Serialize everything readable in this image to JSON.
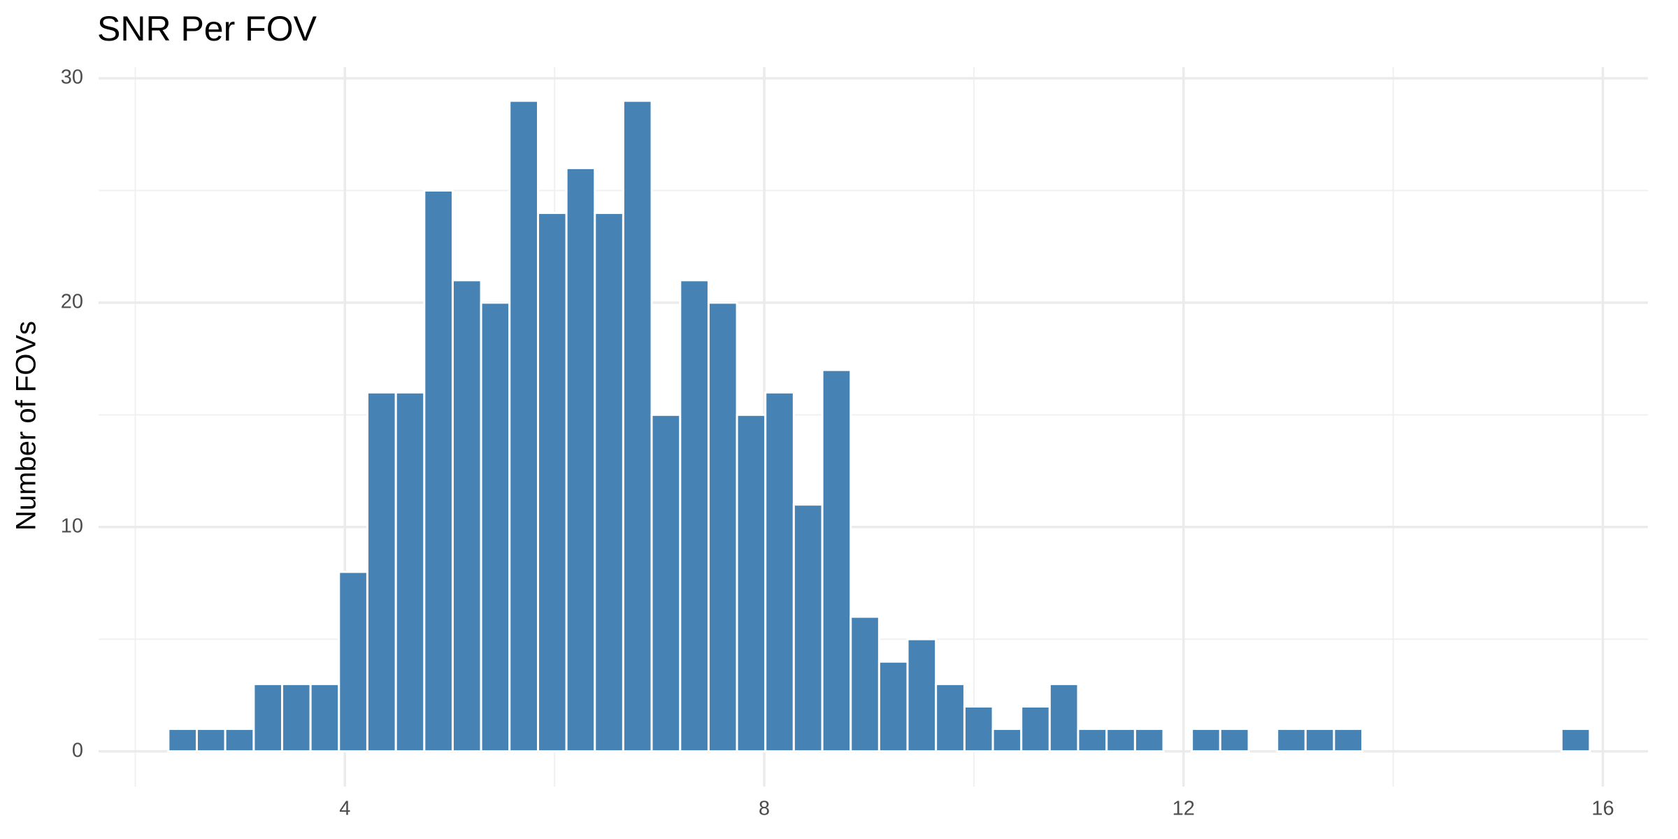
{
  "chart_data": {
    "type": "histogram",
    "title": "SNR Per FOV",
    "y_label": "Number of FOVs",
    "bins": [
      2.316,
      2.587,
      2.858,
      3.13,
      3.401,
      3.672,
      3.943,
      4.214,
      4.486,
      4.757,
      5.028,
      5.299,
      5.57,
      5.842,
      6.113,
      6.384,
      6.655,
      6.926,
      7.198,
      7.469,
      7.74,
      8.011,
      8.282,
      8.554,
      8.825,
      9.096,
      9.367,
      9.638,
      9.91,
      10.181,
      10.452,
      10.723,
      10.994,
      11.266,
      11.537,
      11.808,
      12.079,
      12.35,
      12.622,
      12.893,
      13.164,
      13.435,
      13.706,
      13.978,
      14.249,
      14.52,
      14.791,
      15.062,
      15.334,
      15.605,
      15.876
    ],
    "counts": [
      1,
      1,
      1,
      3,
      3,
      3,
      8,
      16,
      16,
      25,
      21,
      20,
      29,
      24,
      26,
      24,
      29,
      15,
      21,
      20,
      15,
      16,
      11,
      17,
      6,
      4,
      5,
      3,
      2,
      1,
      2,
      3,
      1,
      1,
      1,
      0,
      1,
      1,
      0,
      1,
      1,
      1,
      0,
      0,
      0,
      0,
      0,
      0,
      0,
      1
    ],
    "color": "#4682b4",
    "xlim": [
      1.65,
      16.43
    ],
    "xticks": [
      4,
      8,
      12,
      16
    ],
    "xminor": [
      2,
      6,
      10,
      14
    ],
    "ylim": [
      -1.57,
      30.5
    ],
    "yticks": [
      0,
      10,
      20,
      30
    ],
    "yminor": [
      5,
      15,
      25
    ],
    "grid": true
  }
}
